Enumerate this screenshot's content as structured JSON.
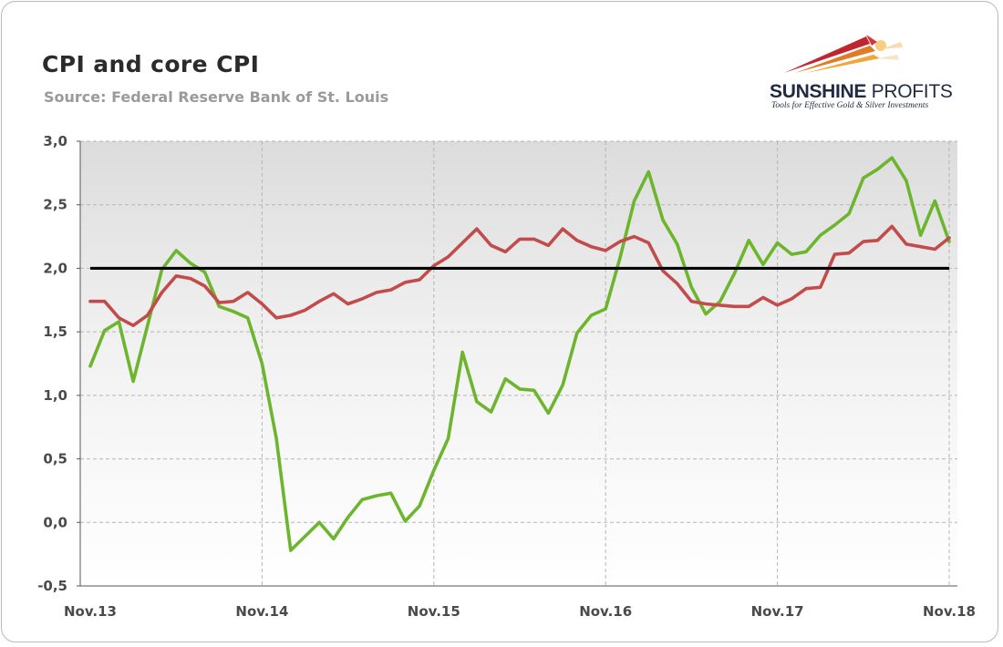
{
  "title": "CPI and core CPI",
  "subtitle": "Source: Federal Reserve Bank of St. Louis",
  "logo": {
    "name_bold": "SUNSHINE",
    "name_light": " PROFITS",
    "tagline": "Tools for Effective Gold & Silver Investments"
  },
  "chart_data": {
    "type": "line",
    "title": "CPI and core CPI",
    "ylim": [
      -0.5,
      3.0
    ],
    "y_ticks": [
      3.0,
      2.5,
      2.0,
      1.5,
      1.0,
      0.5,
      0.0,
      -0.5
    ],
    "y_tick_labels": [
      "3,0",
      "2,5",
      "2,0",
      "1,5",
      "1,0",
      "0,5",
      "0,0",
      "-0,5"
    ],
    "x_tick_labels": [
      "Nov.13",
      "Nov.14",
      "Nov.15",
      "Nov.16",
      "Nov.17",
      "Nov.18"
    ],
    "x_tick_index": [
      0,
      12,
      24,
      36,
      48,
      60
    ],
    "grid": true,
    "reference_line": {
      "value": 2.0,
      "color": "#000000"
    },
    "series": [
      {
        "color": "#6cb52d",
        "values": [
          1.23,
          1.51,
          1.58,
          1.11,
          1.55,
          1.99,
          2.14,
          2.04,
          1.97,
          1.7,
          1.66,
          1.61,
          1.25,
          0.66,
          -0.22,
          -0.11,
          0.0,
          -0.13,
          0.04,
          0.18,
          0.21,
          0.23,
          0.01,
          0.13,
          0.41,
          0.66,
          1.34,
          0.95,
          0.87,
          1.13,
          1.05,
          1.04,
          0.86,
          1.08,
          1.49,
          1.63,
          1.68,
          2.08,
          2.53,
          2.76,
          2.38,
          2.19,
          1.85,
          1.64,
          1.74,
          1.96,
          2.22,
          2.03,
          2.2,
          2.11,
          2.13,
          2.26,
          2.34,
          2.43,
          2.71,
          2.78,
          2.87,
          2.69,
          2.26,
          2.53,
          2.21
        ]
      },
      {
        "color": "#c24b4b",
        "values": [
          1.74,
          1.74,
          1.61,
          1.55,
          1.63,
          1.81,
          1.94,
          1.92,
          1.86,
          1.73,
          1.74,
          1.81,
          1.72,
          1.61,
          1.63,
          1.67,
          1.74,
          1.8,
          1.72,
          1.76,
          1.81,
          1.83,
          1.89,
          1.91,
          2.02,
          2.09,
          2.2,
          2.31,
          2.18,
          2.13,
          2.23,
          2.23,
          2.18,
          2.31,
          2.22,
          2.17,
          2.14,
          2.21,
          2.25,
          2.2,
          1.98,
          1.88,
          1.74,
          1.72,
          1.71,
          1.7,
          1.7,
          1.77,
          1.71,
          1.76,
          1.84,
          1.85,
          2.11,
          2.12,
          2.21,
          2.22,
          2.33,
          2.19,
          2.17,
          2.15,
          2.24
        ]
      }
    ]
  }
}
